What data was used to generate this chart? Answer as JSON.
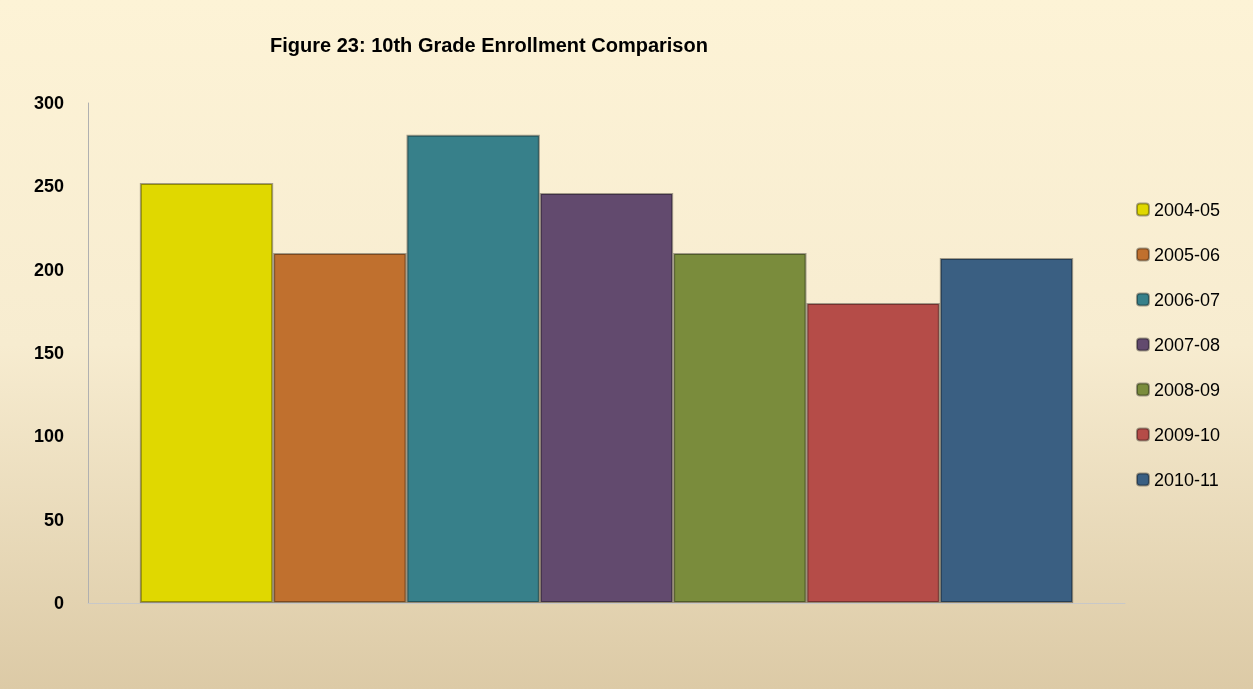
{
  "chart_data": {
    "type": "bar",
    "title": "Figure 23: 10th Grade Enrollment Comparison",
    "categories": [
      null
    ],
    "series": [
      {
        "name": "2004-05",
        "color": "#e0d800",
        "values": [
          252
        ]
      },
      {
        "name": "2005-06",
        "color": "#c0702e",
        "values": [
          210
        ]
      },
      {
        "name": "2006-07",
        "color": "#37808a",
        "values": [
          281
        ]
      },
      {
        "name": "2007-08",
        "color": "#624a6e",
        "values": [
          246
        ]
      },
      {
        "name": "2008-09",
        "color": "#7a8c3c",
        "values": [
          210
        ]
      },
      {
        "name": "2009-10",
        "color": "#b54c48",
        "values": [
          180
        ]
      },
      {
        "name": "2010-11",
        "color": "#3a5f82",
        "values": [
          207
        ]
      }
    ],
    "ylim": [
      0,
      300
    ],
    "yticks": [
      0,
      50,
      100,
      150,
      200,
      250,
      300
    ],
    "grid": false,
    "legend": "right"
  }
}
